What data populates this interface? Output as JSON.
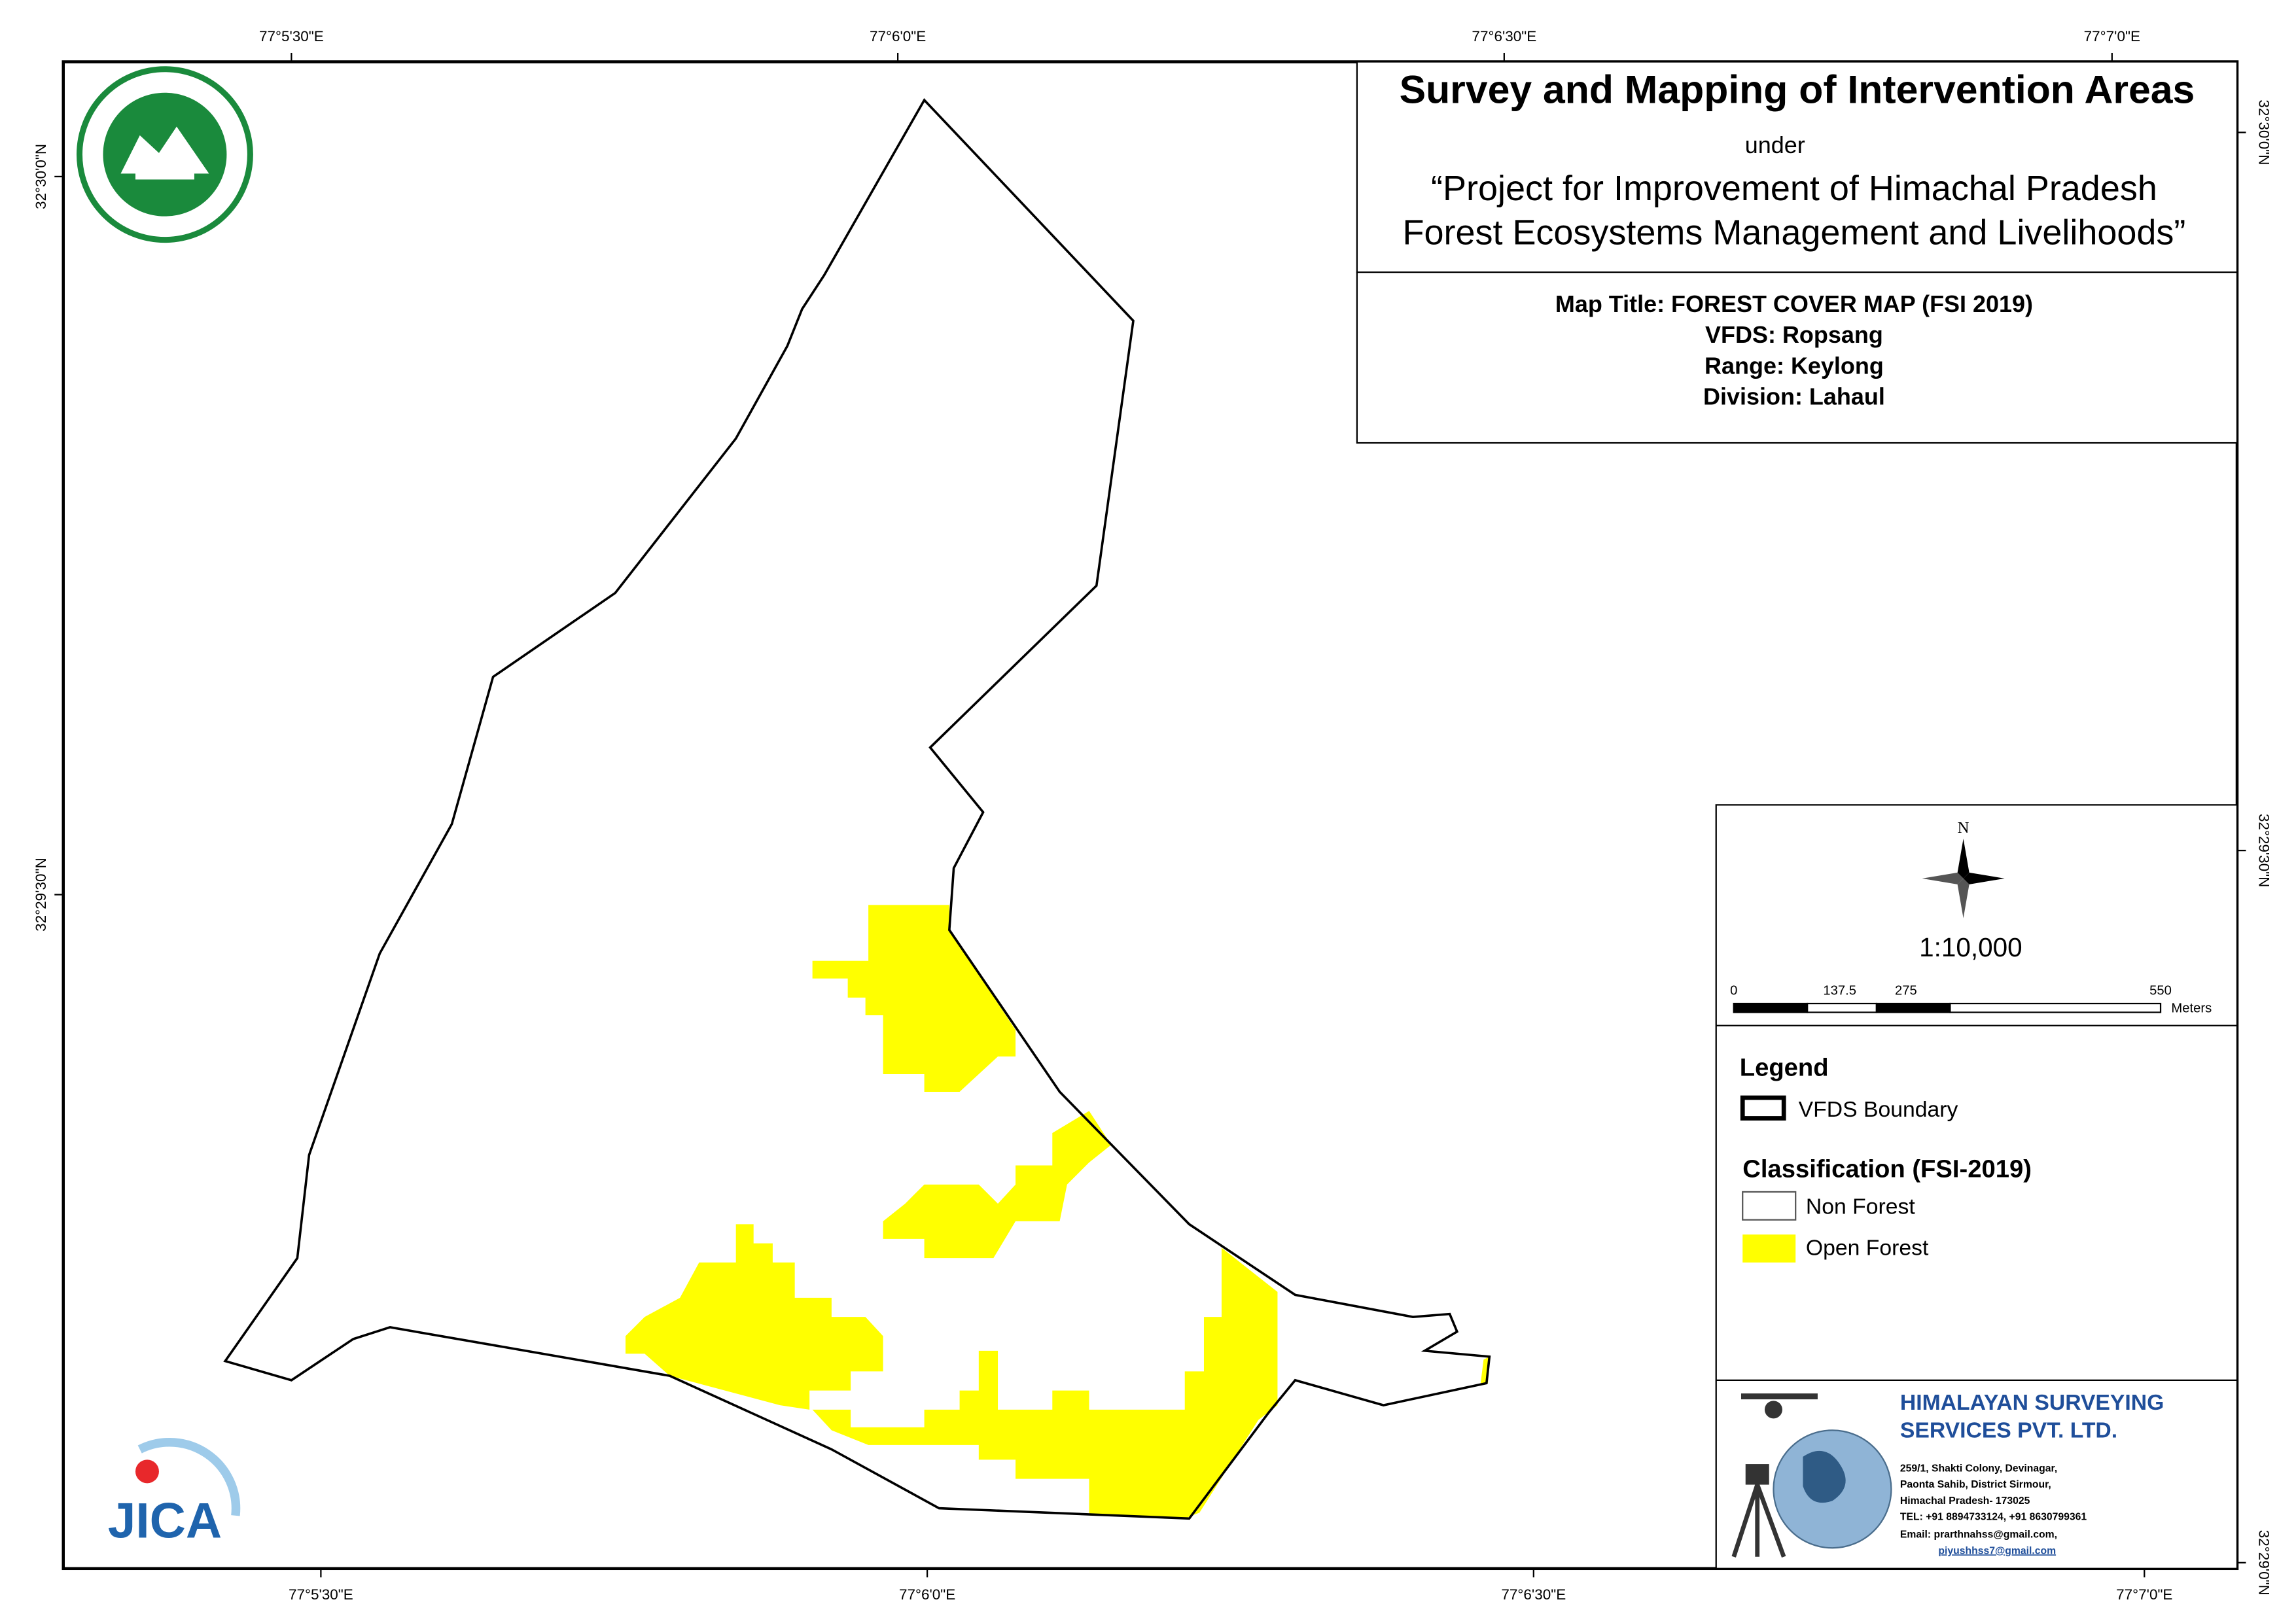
{
  "header": {
    "title": "Survey and Mapping of Intervention Areas",
    "under": "under",
    "project": [
      "“Project for Improvement of Himachal Pradesh",
      "Forest Ecosystems Management and Livelihoods”"
    ]
  },
  "map_info": [
    "Map Title: FOREST COVER MAP (FSI 2019)",
    "VFDS: Ropsang",
    "Range: Keylong",
    "Division: Lahaul"
  ],
  "graticule": {
    "top": [
      "77°5'30\"E",
      "77°6'0\"E",
      "77°6'30\"E",
      "77°7'0\"E"
    ],
    "bottom": [
      "77°5'30\"E",
      "77°6'0\"E",
      "77°6'30\"E",
      "77°7'0\"E"
    ],
    "left": [
      "32°30'0\"N",
      "32°29'30\"N"
    ],
    "right": [
      "32°30'0\"N",
      "32°29'30\"N",
      "32°29'0\"N"
    ]
  },
  "north": "N",
  "scale": "1:10,000",
  "scalebar": {
    "labels": [
      "0",
      "137.5",
      "275",
      "550"
    ],
    "unit": "Meters"
  },
  "legend": {
    "title": "Legend",
    "boundary": "VFDS Boundary",
    "classification": "Classification (FSI-2019)",
    "items": [
      "Non Forest",
      "Open Forest"
    ]
  },
  "logo": "JICA",
  "company": {
    "name": [
      "HIMALAYAN SURVEYING",
      "SERVICES PVT. LTD."
    ],
    "address": [
      "259/1, Shakti Colony, Devinagar,",
      "Paonta Sahib, District Sirmour,",
      "Himachal Pradesh- 173025",
      "TEL: +91 8894733124, +91 8630799361",
      "Email: prarthnahss@gmail.com,",
      "piyushhss7@gmail.com"
    ]
  }
}
